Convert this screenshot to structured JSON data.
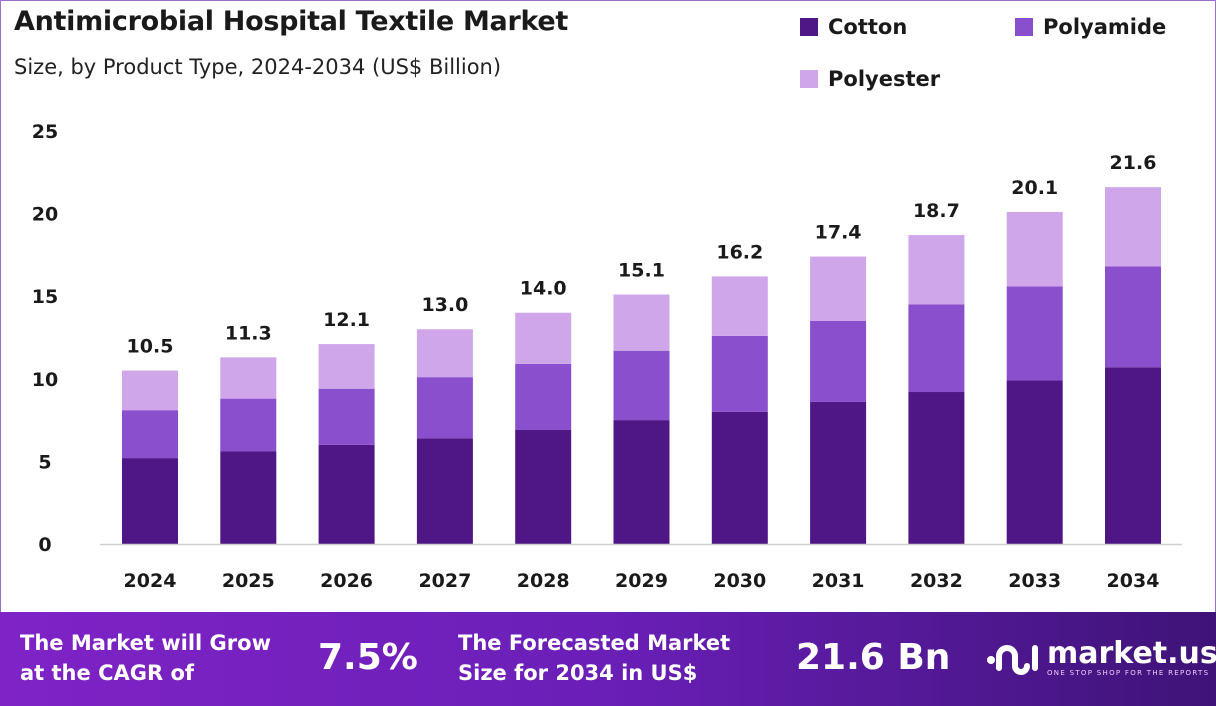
{
  "chart_data": {
    "type": "bar",
    "stacked": true,
    "title": "Antimicrobial Hospital Textile Market",
    "subtitle": "Size, by Product Type, 2024-2034 (US$ Billion)",
    "categories": [
      "2024",
      "2025",
      "2026",
      "2027",
      "2028",
      "2029",
      "2030",
      "2031",
      "2032",
      "2033",
      "2034"
    ],
    "series": [
      {
        "name": "Cotton",
        "color": "#4f1785",
        "values": [
          5.2,
          5.6,
          6.0,
          6.4,
          6.9,
          7.5,
          8.0,
          8.6,
          9.2,
          9.9,
          10.7
        ]
      },
      {
        "name": "Polyamide",
        "color": "#8a4fcc",
        "values": [
          2.9,
          3.2,
          3.4,
          3.7,
          4.0,
          4.2,
          4.6,
          4.9,
          5.3,
          5.7,
          6.1
        ]
      },
      {
        "name": "Polyester",
        "color": "#cfa6ea",
        "values": [
          2.4,
          2.5,
          2.7,
          2.9,
          3.1,
          3.4,
          3.6,
          3.9,
          4.2,
          4.5,
          4.8
        ]
      }
    ],
    "totals": [
      "10.5",
      "11.3",
      "12.1",
      "13.0",
      "14.0",
      "15.1",
      "16.2",
      "17.4",
      "18.7",
      "20.1",
      "21.6"
    ],
    "yticks": [
      "0",
      "5",
      "10",
      "15",
      "20",
      "25"
    ],
    "ylim": [
      0,
      25
    ],
    "grid": false,
    "legend": "top-right"
  },
  "banner": {
    "cagr_label": [
      "The Market will Grow",
      "at the CAGR of"
    ],
    "cagr_value": "7.5%",
    "forecast_label": [
      "The Forecasted Market",
      "Size for 2034 in US$"
    ],
    "forecast_value": "21.6 Bn",
    "logo_name": "market.us",
    "logo_tagline": "ONE STOP SHOP FOR THE REPORTS"
  }
}
